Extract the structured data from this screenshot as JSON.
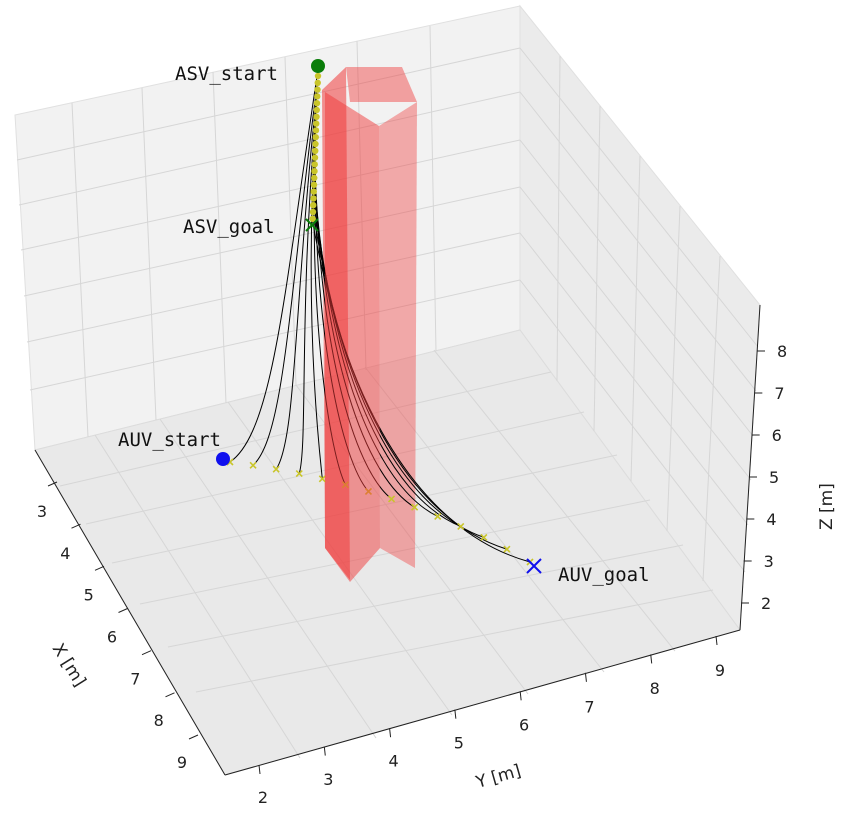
{
  "chart_data": {
    "type": "3d-line",
    "xlabel": "X [m]",
    "ylabel": "Y [m]",
    "zlabel": "Z [m]",
    "x_ticks": [
      "3",
      "4",
      "5",
      "6",
      "7",
      "8",
      "9"
    ],
    "y_ticks": [
      "2",
      "3",
      "4",
      "5",
      "6",
      "7",
      "8",
      "9"
    ],
    "z_ticks": [
      "2",
      "3",
      "4",
      "5",
      "6",
      "7",
      "8"
    ],
    "xlim": [
      2.5,
      9.5
    ],
    "ylim": [
      1.6,
      9.4
    ],
    "zlim": [
      1.5,
      8.8
    ],
    "grid": true,
    "annotations": {
      "asv_start": "ASV_start",
      "asv_goal": "ASV_goal",
      "auv_start": "AUV_start",
      "auv_goal": "AUV_goal"
    },
    "colors": {
      "asv": "#0a7d0a",
      "auv": "#1010ee",
      "waypoints": "#c9c52a",
      "tether": "#000000",
      "obstacle": "#f03a3a"
    },
    "tether_count": 14
  }
}
